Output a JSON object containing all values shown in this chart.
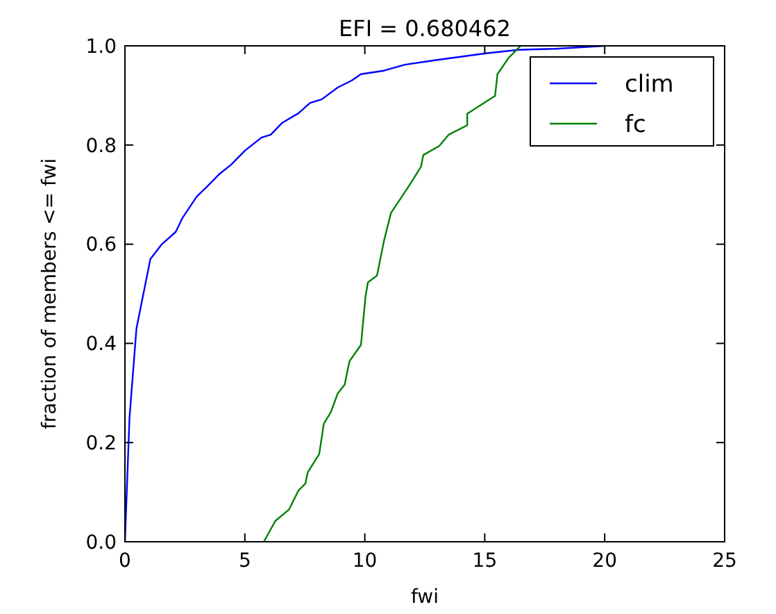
{
  "chart_data": {
    "type": "line",
    "title": "EFI = 0.680462",
    "xlabel": "fwi",
    "ylabel": "fraction of members <= fwi",
    "xlim": [
      0,
      25
    ],
    "xticks": [
      0,
      5,
      10,
      15,
      20,
      25
    ],
    "ylim": [
      0,
      1
    ],
    "yticks": [
      {
        "value": 0,
        "label": "0.0"
      },
      {
        "value": 0.2,
        "label": "0.2"
      },
      {
        "value": 0.4,
        "label": "0.4"
      },
      {
        "value": 0.6,
        "label": "0.6"
      },
      {
        "value": 0.8,
        "label": "0.8"
      },
      {
        "value": 1,
        "label": "1.0"
      }
    ],
    "legend": "top right",
    "grid": false,
    "series": [
      {
        "name": "clim",
        "color": "#0000ff",
        "x": [
          0,
          0.19,
          0.48,
          1.06,
          1.54,
          2.12,
          2.41,
          2.99,
          3.38,
          3.95,
          4.44,
          5.01,
          5.69,
          6.08,
          6.56,
          7.23,
          7.72,
          8.2,
          8.87,
          9.45,
          9.84,
          10.8,
          11.67,
          12.92,
          15.05,
          16.4,
          17.94,
          20
        ],
        "values": [
          0,
          0.25,
          0.43,
          0.57,
          0.6,
          0.625,
          0.654,
          0.696,
          0.714,
          0.742,
          0.761,
          0.789,
          0.815,
          0.821,
          0.845,
          0.864,
          0.885,
          0.892,
          0.916,
          0.93,
          0.943,
          0.95,
          0.962,
          0.971,
          0.985,
          0.992,
          0.994,
          1
        ]
      },
      {
        "name": "fc",
        "color": "#008000",
        "x": [
          5.79,
          6.27,
          6.84,
          7.23,
          7.52,
          7.62,
          8.1,
          8.29,
          8.58,
          8.87,
          9.16,
          9.36,
          9.84,
          10.03,
          10.13,
          10.51,
          10.8,
          11.09,
          11.86,
          12.34,
          12.44,
          13.1,
          13.5,
          14.27,
          14.27,
          15.43,
          15.53,
          16.0,
          16.49
        ],
        "values": [
          0,
          0.042,
          0.065,
          0.103,
          0.117,
          0.14,
          0.177,
          0.238,
          0.261,
          0.299,
          0.317,
          0.364,
          0.397,
          0.495,
          0.523,
          0.537,
          0.607,
          0.663,
          0.719,
          0.756,
          0.78,
          0.798,
          0.821,
          0.84,
          0.863,
          0.899,
          0.943,
          0.976,
          1
        ]
      }
    ]
  }
}
